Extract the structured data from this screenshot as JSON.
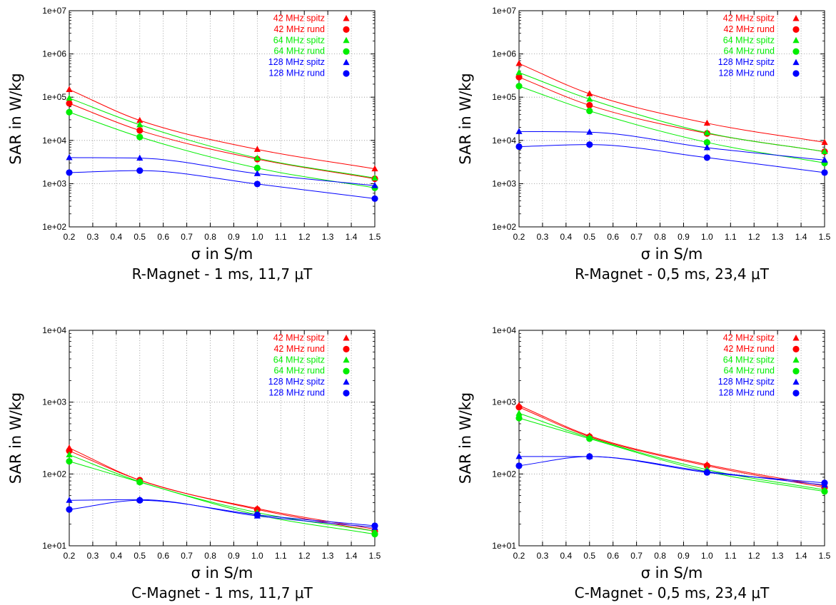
{
  "chart_data": [
    {
      "type": "line",
      "title": "R-Magnet - 1 ms, 11,7 μT",
      "xlabel": "σ in S/m",
      "ylabel": "SAR in W/kg",
      "yscale": "log",
      "xlim": [
        0.2,
        1.5
      ],
      "ylim": [
        100,
        10000000
      ],
      "x_ticks": [
        "0.2",
        "0.3",
        "0.4",
        "0.5",
        "0.6",
        "0.7",
        "0.8",
        "0.9",
        "1.0",
        "1.1",
        "1.2",
        "1.3",
        "1.4",
        "1.5"
      ],
      "y_ticks": [
        "1e+02",
        "1e+03",
        "1e+04",
        "1e+05",
        "1e+06",
        "1e+07"
      ],
      "grid": true,
      "legend": "top-right",
      "x": [
        0.2,
        0.5,
        1.0,
        1.5
      ],
      "series": [
        {
          "name": "42 MHz spitz",
          "color": "#ff0000",
          "marker": "triangle",
          "values": [
            150000,
            29000,
            6200,
            2200
          ]
        },
        {
          "name": "42 MHz rund",
          "color": "#ff0000",
          "marker": "circle",
          "values": [
            72000,
            17000,
            3700,
            1300
          ]
        },
        {
          "name": "64 MHz spitz",
          "color": "#00ee00",
          "marker": "triangle",
          "values": [
            95000,
            23000,
            3900,
            1350
          ]
        },
        {
          "name": "64 MHz rund",
          "color": "#00ee00",
          "marker": "circle",
          "values": [
            45000,
            12000,
            2300,
            800
          ]
        },
        {
          "name": "128 MHz spitz",
          "color": "#0000ff",
          "marker": "triangle",
          "values": [
            4000,
            3900,
            1700,
            900
          ]
        },
        {
          "name": "128 MHz rund",
          "color": "#0000ff",
          "marker": "circle",
          "values": [
            1800,
            2000,
            980,
            450
          ]
        }
      ]
    },
    {
      "type": "line",
      "title": "R-Magnet - 0,5 ms, 23,4 μT",
      "xlabel": "σ in S/m",
      "ylabel": "SAR in W/kg",
      "yscale": "log",
      "xlim": [
        0.2,
        1.5
      ],
      "ylim": [
        100,
        10000000
      ],
      "x_ticks": [
        "0.2",
        "0.3",
        "0.4",
        "0.5",
        "0.6",
        "0.7",
        "0.8",
        "0.9",
        "1.0",
        "1.1",
        "1.2",
        "1.3",
        "1.4",
        "1.5"
      ],
      "y_ticks": [
        "1e+02",
        "1e+03",
        "1e+04",
        "1e+05",
        "1e+06",
        "1e+07"
      ],
      "grid": true,
      "legend": "top-right",
      "x": [
        0.2,
        0.5,
        1.0,
        1.5
      ],
      "series": [
        {
          "name": "42 MHz spitz",
          "color": "#ff0000",
          "marker": "triangle",
          "values": [
            600000,
            120000,
            25000,
            9000
          ]
        },
        {
          "name": "42 MHz rund",
          "color": "#ff0000",
          "marker": "circle",
          "values": [
            290000,
            65000,
            14500,
            5500
          ]
        },
        {
          "name": "64 MHz spitz",
          "color": "#00ee00",
          "marker": "triangle",
          "values": [
            370000,
            90000,
            15000,
            5500
          ]
        },
        {
          "name": "64 MHz rund",
          "color": "#00ee00",
          "marker": "circle",
          "values": [
            180000,
            48000,
            9000,
            3000
          ]
        },
        {
          "name": "128 MHz spitz",
          "color": "#0000ff",
          "marker": "triangle",
          "values": [
            16000,
            15500,
            6800,
            3500
          ]
        },
        {
          "name": "128 MHz rund",
          "color": "#0000ff",
          "marker": "circle",
          "values": [
            7200,
            8000,
            4000,
            1800
          ]
        }
      ]
    },
    {
      "type": "line",
      "title": "C-Magnet - 1 ms, 11,7 μT",
      "xlabel": "σ in S/m",
      "ylabel": "SAR in W/kg",
      "yscale": "log",
      "xlim": [
        0.2,
        1.5
      ],
      "ylim": [
        10,
        10000
      ],
      "x_ticks": [
        "0.2",
        "0.3",
        "0.4",
        "0.5",
        "0.6",
        "0.7",
        "0.8",
        "0.9",
        "1.0",
        "1.1",
        "1.2",
        "1.3",
        "1.4",
        "1.5"
      ],
      "y_ticks": [
        "1e+01",
        "1e+02",
        "1e+03",
        "1e+04"
      ],
      "grid": true,
      "legend": "top-right",
      "x": [
        0.2,
        0.5,
        1.0,
        1.5
      ],
      "series": [
        {
          "name": "42 MHz spitz",
          "color": "#ff0000",
          "marker": "triangle",
          "values": [
            230,
            82,
            33,
            17
          ]
        },
        {
          "name": "42 MHz rund",
          "color": "#ff0000",
          "marker": "circle",
          "values": [
            210,
            82,
            32,
            16
          ]
        },
        {
          "name": "64 MHz spitz",
          "color": "#00ee00",
          "marker": "triangle",
          "values": [
            185,
            78,
            29,
            16
          ]
        },
        {
          "name": "64 MHz rund",
          "color": "#00ee00",
          "marker": "circle",
          "values": [
            150,
            77,
            27,
            14.5
          ]
        },
        {
          "name": "128 MHz spitz",
          "color": "#0000ff",
          "marker": "triangle",
          "values": [
            43,
            44,
            26,
            18
          ]
        },
        {
          "name": "128 MHz rund",
          "color": "#0000ff",
          "marker": "circle",
          "values": [
            32,
            43,
            27,
            19
          ]
        }
      ]
    },
    {
      "type": "line",
      "title": "C-Magnet - 0,5 ms, 23,4 μT",
      "xlabel": "σ in S/m",
      "ylabel": "SAR in W/kg",
      "yscale": "log",
      "xlim": [
        0.2,
        1.5
      ],
      "ylim": [
        10,
        10000
      ],
      "x_ticks": [
        "0.2",
        "0.3",
        "0.4",
        "0.5",
        "0.6",
        "0.7",
        "0.8",
        "0.9",
        "1.0",
        "1.1",
        "1.2",
        "1.3",
        "1.4",
        "1.5"
      ],
      "y_ticks": [
        "1e+01",
        "1e+02",
        "1e+03",
        "1e+04"
      ],
      "grid": true,
      "legend": "top-right",
      "x": [
        0.2,
        0.5,
        1.0,
        1.5
      ],
      "series": [
        {
          "name": "42 MHz spitz",
          "color": "#ff0000",
          "marker": "triangle",
          "values": [
            900,
            340,
            135,
            68
          ]
        },
        {
          "name": "42 MHz rund",
          "color": "#ff0000",
          "marker": "circle",
          "values": [
            850,
            330,
            130,
            65
          ]
        },
        {
          "name": "64 MHz spitz",
          "color": "#00ee00",
          "marker": "triangle",
          "values": [
            700,
            320,
            115,
            60
          ]
        },
        {
          "name": "64 MHz rund",
          "color": "#00ee00",
          "marker": "circle",
          "values": [
            600,
            310,
            108,
            57
          ]
        },
        {
          "name": "128 MHz spitz",
          "color": "#0000ff",
          "marker": "triangle",
          "values": [
            175,
            175,
            108,
            70
          ]
        },
        {
          "name": "128 MHz rund",
          "color": "#0000ff",
          "marker": "circle",
          "values": [
            130,
            175,
            105,
            75
          ]
        }
      ]
    }
  ]
}
